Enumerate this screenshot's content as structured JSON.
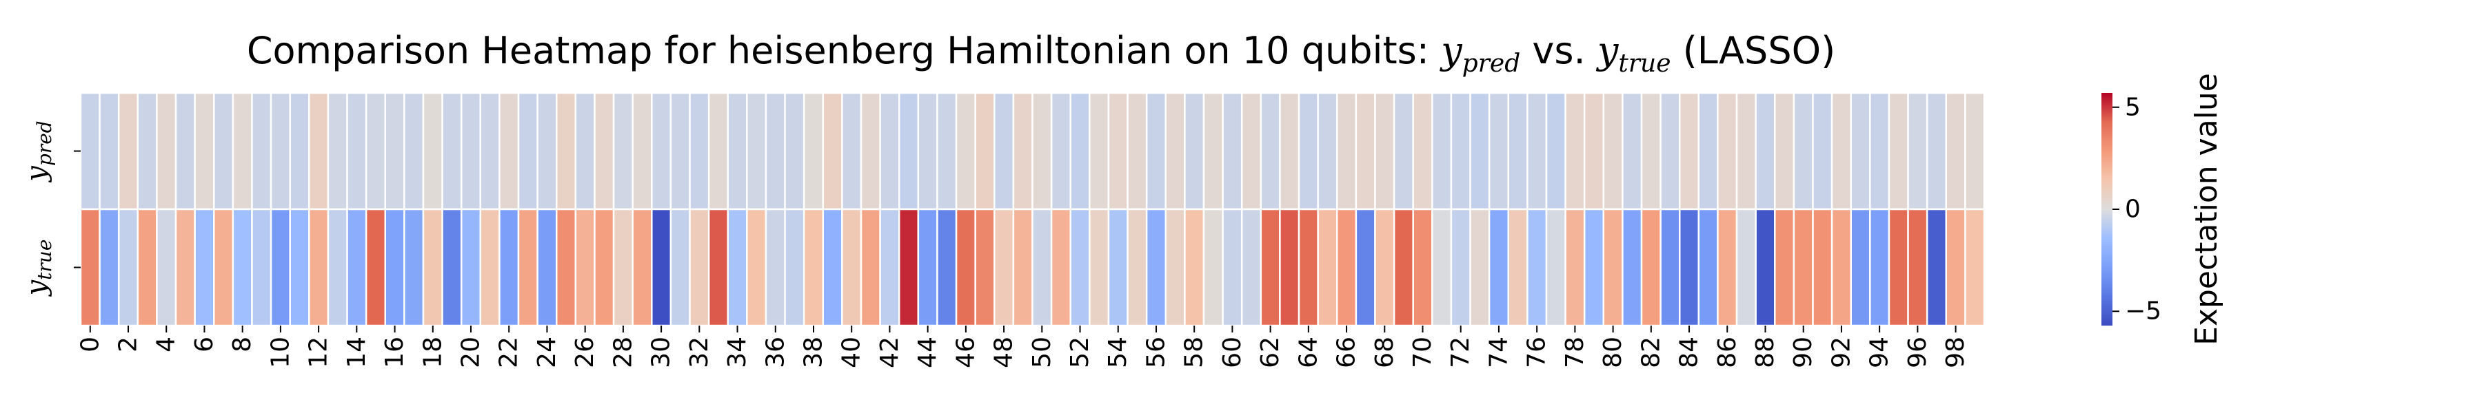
{
  "chart_data": {
    "type": "heatmap",
    "title": {
      "prefix": "Comparison Heatmap for heisenberg Hamiltonian on 10 qubits: ",
      "pred_var": "y",
      "pred_sub": "pred",
      "middle": " vs. ",
      "true_var": "y",
      "true_sub": "true",
      "suffix": " (LASSO)"
    },
    "rows": [
      {
        "var": "y",
        "sub": "pred"
      },
      {
        "var": "y",
        "sub": "true"
      }
    ],
    "x_ticks": [
      "0",
      "2",
      "4",
      "6",
      "8",
      "10",
      "12",
      "14",
      "16",
      "18",
      "20",
      "22",
      "24",
      "26",
      "28",
      "30",
      "32",
      "34",
      "36",
      "38",
      "40",
      "42",
      "44",
      "46",
      "48",
      "50",
      "52",
      "54",
      "56",
      "58",
      "60",
      "62",
      "64",
      "66",
      "68",
      "70",
      "72",
      "74",
      "76",
      "78",
      "80",
      "82",
      "84",
      "86",
      "88",
      "90",
      "92",
      "94",
      "96",
      "98"
    ],
    "n_columns": 100,
    "values": {
      "y_pred": [
        -0.5,
        -0.5,
        0.6,
        -0.4,
        0.4,
        -0.4,
        0.3,
        -0.4,
        0.3,
        -0.4,
        -0.4,
        -0.5,
        0.8,
        -0.3,
        -0.4,
        -0.3,
        -0.3,
        -0.4,
        0.2,
        -0.4,
        -0.4,
        -0.4,
        0.4,
        -0.5,
        -0.4,
        0.7,
        -0.4,
        0.5,
        -0.3,
        0.3,
        -0.4,
        -0.4,
        -0.5,
        0.3,
        -0.4,
        -0.3,
        -0.4,
        -0.4,
        0.2,
        0.8,
        -0.4,
        0.4,
        -0.4,
        -0.6,
        -0.4,
        -0.4,
        0.3,
        0.8,
        -0.5,
        0.6,
        0.3,
        -0.4,
        -0.6,
        0.3,
        0.5,
        0.4,
        -0.5,
        0.4,
        -0.4,
        0.3,
        -0.4,
        0.4,
        -0.4,
        0.4,
        -0.5,
        -0.4,
        0.4,
        0.5,
        0.4,
        -0.4,
        0.5,
        -0.4,
        -0.5,
        -0.6,
        -0.4,
        -0.5,
        -0.4,
        -0.6,
        0.5,
        0.6,
        0.4,
        -0.4,
        0.3,
        -0.4,
        0.5,
        -0.5,
        0.5,
        0.4,
        -0.5,
        0.4,
        -0.4,
        -0.5,
        0.4,
        -0.4,
        -0.5,
        0.4,
        -0.3,
        -0.4,
        0.4,
        0.3
      ],
      "y_true": [
        3.5,
        -2.5,
        -0.6,
        2.6,
        -0.3,
        2.0,
        -1.5,
        2.2,
        -1.4,
        -0.9,
        -3.0,
        -1.7,
        2.2,
        -0.6,
        -2.2,
        4.3,
        -2.7,
        -2.5,
        1.3,
        -3.8,
        -1.8,
        1.3,
        -2.8,
        2.5,
        -2.9,
        3.2,
        2.1,
        2.7,
        0.8,
        2.5,
        -5.6,
        -0.6,
        1.0,
        4.5,
        -1.2,
        1.5,
        -0.4,
        -0.6,
        1.5,
        -2.0,
        1.2,
        2.5,
        -0.7,
        5.2,
        -2.9,
        -3.8,
        4.1,
        3.4,
        1.1,
        2.0,
        -0.4,
        2.1,
        -1.0,
        0.7,
        -1.1,
        0.7,
        -2.2,
        0.7,
        1.5,
        0.2,
        -0.5,
        -0.4,
        4.2,
        4.5,
        4.2,
        1.7,
        2.9,
        -3.8,
        1.6,
        4.3,
        3.2,
        -0.1,
        -0.6,
        0.4,
        -2.4,
        1.1,
        -1.3,
        -0.2,
        2.0,
        -1.7,
        2.2,
        -2.6,
        2.7,
        -3.4,
        -4.5,
        -3.0,
        2.3,
        -0.2,
        -5.4,
        3.1,
        3.0,
        3.1,
        2.5,
        -3.1,
        -2.8,
        4.2,
        4.2,
        -5.1,
        2.3,
        1.5
      ]
    },
    "vmin": -5.7,
    "vmax": 5.7,
    "colormap": "coolwarm",
    "colors": {
      "low": "#3b4cc0",
      "mid": "#dddddd",
      "high": "#b40426",
      "cell_border": "#ffffff"
    },
    "colorbar": {
      "label": "Expectation value",
      "ticks": [
        {
          "value": 5,
          "label": "5"
        },
        {
          "value": 0,
          "label": "0"
        },
        {
          "value": -5,
          "label": "−5"
        }
      ]
    }
  }
}
